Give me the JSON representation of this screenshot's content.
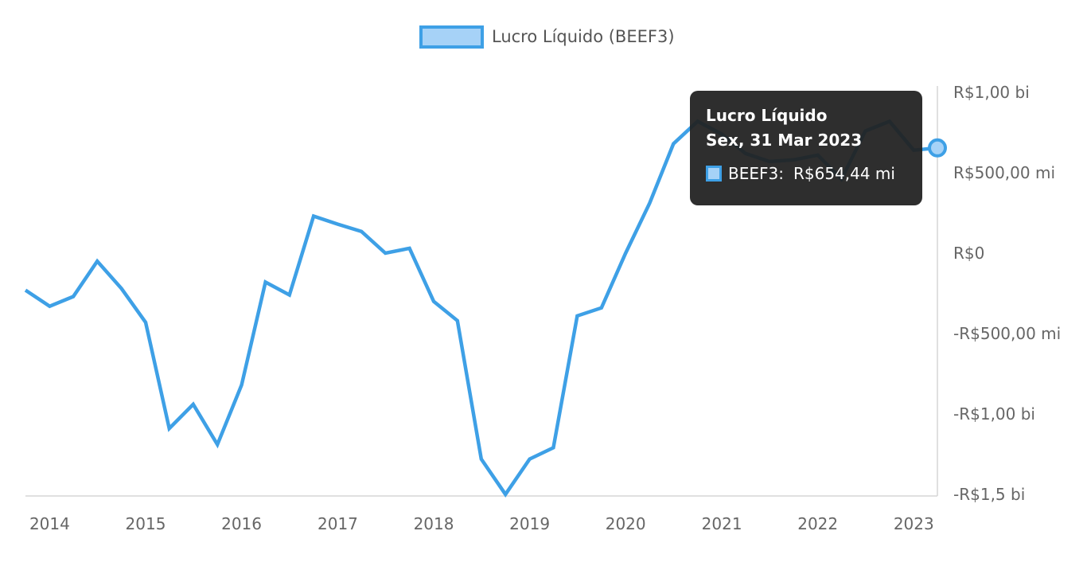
{
  "chart_data": {
    "type": "line",
    "legend": {
      "position": "top-center",
      "label": "Lucro Líquido (BEEF3)"
    },
    "series": [
      {
        "name": "Lucro Líquido (BEEF3)",
        "color": "#3ea0e6",
        "x": [
          "2013-09-30",
          "2013-12-31",
          "2014-03-31",
          "2014-06-30",
          "2014-09-30",
          "2014-12-31",
          "2015-03-31",
          "2015-06-30",
          "2015-09-30",
          "2015-12-31",
          "2016-03-31",
          "2016-06-30",
          "2016-09-30",
          "2016-12-31",
          "2017-03-31",
          "2017-06-30",
          "2017-09-30",
          "2017-12-31",
          "2018-03-31",
          "2018-06-30",
          "2018-09-30",
          "2018-12-31",
          "2019-03-31",
          "2019-06-30",
          "2019-09-30",
          "2019-12-31",
          "2020-03-31",
          "2020-06-30",
          "2020-09-30",
          "2020-12-31",
          "2021-03-31",
          "2021-06-30",
          "2021-09-30",
          "2021-12-31",
          "2022-03-31",
          "2022-06-30",
          "2022-09-30",
          "2022-12-31",
          "2023-03-31"
        ],
        "values": [
          -230,
          -330,
          -270,
          -50,
          -220,
          -430,
          -1090,
          -940,
          -1190,
          -820,
          -180,
          -260,
          230,
          180,
          135,
          0,
          30,
          -300,
          -420,
          -1280,
          -1500,
          -1280,
          -1210,
          -390,
          -340,
          0,
          310,
          680,
          820,
          740,
          620,
          570,
          580,
          610,
          460,
          760,
          820,
          640,
          654.44
        ]
      }
    ],
    "x_ticks": [
      "2014",
      "2015",
      "2016",
      "2017",
      "2018",
      "2019",
      "2020",
      "2021",
      "2022",
      "2023"
    ],
    "x_tick_values": [
      "2013-12-31",
      "2014-12-31",
      "2015-12-31",
      "2016-12-31",
      "2017-12-31",
      "2018-12-31",
      "2019-12-31",
      "2020-12-31",
      "2021-12-31",
      "2022-12-31"
    ],
    "y_ticks": [
      {
        "value": 1000,
        "label": "R$1,00 bi"
      },
      {
        "value": 500,
        "label": "R$500,00 mi"
      },
      {
        "value": 0,
        "label": "R$0"
      },
      {
        "value": -500,
        "label": "-R$500,00 mi"
      },
      {
        "value": -1000,
        "label": "-R$1,00 bi"
      },
      {
        "value": -1500,
        "label": "-R$1,5 bi"
      }
    ],
    "ylim": [
      -1500,
      1000
    ],
    "y_axis_position": "right",
    "grid": false,
    "highlighted_point": "2023-03-31"
  },
  "tooltip": {
    "title": "Lucro Líquido",
    "date": "Sex, 31 Mar 2023",
    "series_label": "BEEF3:",
    "value": "R$654,44 mi"
  }
}
